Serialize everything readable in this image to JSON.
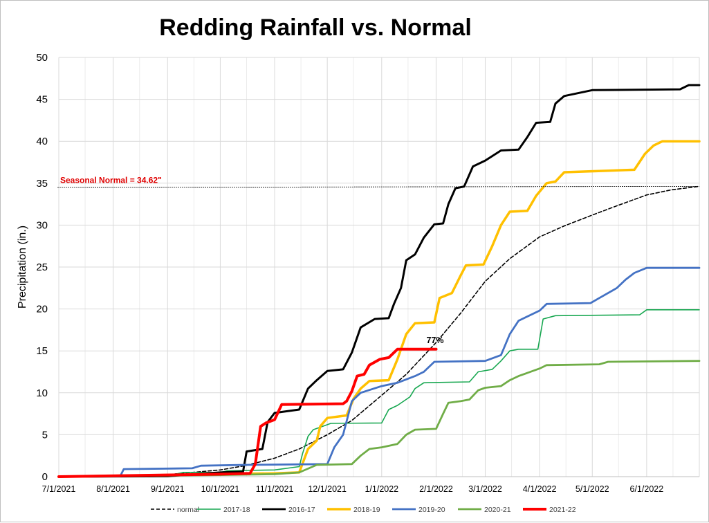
{
  "chart_data": {
    "type": "line",
    "title": "Redding Rainfall vs. Normal",
    "ylabel": "Precipitation (in.)",
    "xlabel": "",
    "ylim": [
      0,
      50
    ],
    "yticks": [
      0,
      5,
      10,
      15,
      20,
      25,
      30,
      35,
      40,
      45,
      50
    ],
    "x_tick_labels": [
      "7/1/2021",
      "8/1/2021",
      "9/1/2021",
      "10/1/2021",
      "11/1/2021",
      "12/1/2021",
      "1/1/2022",
      "2/1/2022",
      "3/1/2022",
      "4/1/2022",
      "5/1/2022",
      "6/1/2022"
    ],
    "xlim": [
      "7/1/2021",
      "7/1/2022"
    ],
    "grid": true,
    "legend_position": "bottom",
    "annotations": {
      "seasonal_normal_label": "Seasonal Normal = 34.62\"",
      "seasonal_normal_value": 34.62,
      "percent_label": "77%"
    },
    "series": [
      {
        "name": "normal",
        "color": "#000000",
        "style": "dashed",
        "points": [
          [
            "7/1/2021",
            0
          ],
          [
            "8/1/2021",
            0.05
          ],
          [
            "9/1/2021",
            0.25
          ],
          [
            "10/1/2021",
            0.8
          ],
          [
            "10/15/2021",
            1.3
          ],
          [
            "11/1/2021",
            2.2
          ],
          [
            "11/15/2021",
            3.3
          ],
          [
            "12/1/2021",
            5.0
          ],
          [
            "12/15/2021",
            6.7
          ],
          [
            "1/1/2022",
            9.7
          ],
          [
            "1/15/2022",
            12.2
          ],
          [
            "2/1/2022",
            16.0
          ],
          [
            "2/15/2022",
            19.5
          ],
          [
            "3/1/2022",
            23.3
          ],
          [
            "3/15/2022",
            26.0
          ],
          [
            "4/1/2022",
            28.6
          ],
          [
            "4/15/2022",
            29.9
          ],
          [
            "5/1/2022",
            31.2
          ],
          [
            "5/15/2022",
            32.3
          ],
          [
            "6/1/2022",
            33.6
          ],
          [
            "6/15/2022",
            34.2
          ],
          [
            "7/1/2022",
            34.62
          ]
        ]
      },
      {
        "name": "2017-18",
        "color": "#17a750",
        "style": "solid",
        "points": [
          [
            "7/1/2021",
            0
          ],
          [
            "9/1/2021",
            0.1
          ],
          [
            "9/10/2021",
            0.5
          ],
          [
            "10/1/2021",
            0.5
          ],
          [
            "10/5/2021",
            0.7
          ],
          [
            "11/1/2021",
            0.8
          ],
          [
            "11/15/2021",
            1.2
          ],
          [
            "11/17/2021",
            2.8
          ],
          [
            "11/20/2021",
            4.8
          ],
          [
            "11/23/2021",
            5.6
          ],
          [
            "12/1/2021",
            6.2
          ],
          [
            "12/3/2021",
            6.35
          ],
          [
            "1/1/2022",
            6.4
          ],
          [
            "1/5/2022",
            8.0
          ],
          [
            "1/10/2022",
            8.5
          ],
          [
            "1/17/2022",
            9.5
          ],
          [
            "1/20/2022",
            10.5
          ],
          [
            "1/25/2022",
            11.2
          ],
          [
            "2/20/2022",
            11.3
          ],
          [
            "2/25/2022",
            12.5
          ],
          [
            "3/5/2022",
            12.8
          ],
          [
            "3/10/2022",
            13.8
          ],
          [
            "3/15/2022",
            15.0
          ],
          [
            "3/20/2022",
            15.2
          ],
          [
            "3/31/2022",
            15.2
          ],
          [
            "4/3/2022",
            18.8
          ],
          [
            "4/10/2022",
            19.2
          ],
          [
            "5/28/2022",
            19.3
          ],
          [
            "6/1/2022",
            19.9
          ],
          [
            "7/1/2022",
            19.9
          ]
        ]
      },
      {
        "name": "2016-17",
        "color": "#000000",
        "style": "solid",
        "points": [
          [
            "7/1/2021",
            0
          ],
          [
            "9/1/2021",
            0.05
          ],
          [
            "10/1/2021",
            0.5
          ],
          [
            "10/14/2021",
            0.6
          ],
          [
            "10/16/2021",
            3.0
          ],
          [
            "10/25/2021",
            3.3
          ],
          [
            "10/28/2021",
            6.5
          ],
          [
            "11/1/2021",
            7.6
          ],
          [
            "11/15/2021",
            8.0
          ],
          [
            "11/20/2021",
            10.5
          ],
          [
            "11/25/2021",
            11.5
          ],
          [
            "12/1/2021",
            12.6
          ],
          [
            "12/10/2021",
            12.8
          ],
          [
            "12/15/2021",
            14.8
          ],
          [
            "12/20/2021",
            17.8
          ],
          [
            "12/28/2021",
            18.8
          ],
          [
            "1/5/2022",
            18.9
          ],
          [
            "1/8/2022",
            20.6
          ],
          [
            "1/12/2022",
            22.5
          ],
          [
            "1/15/2022",
            25.8
          ],
          [
            "1/20/2022",
            26.5
          ],
          [
            "1/25/2022",
            28.5
          ],
          [
            "1/31/2022",
            30.1
          ],
          [
            "2/5/2022",
            30.2
          ],
          [
            "2/8/2022",
            32.5
          ],
          [
            "2/12/2022",
            34.4
          ],
          [
            "2/17/2022",
            34.6
          ],
          [
            "2/22/2022",
            37.0
          ],
          [
            "3/1/2022",
            37.7
          ],
          [
            "3/10/2022",
            38.9
          ],
          [
            "3/20/2022",
            39.0
          ],
          [
            "3/25/2022",
            40.5
          ],
          [
            "3/30/2022",
            42.2
          ],
          [
            "4/7/2022",
            42.3
          ],
          [
            "4/10/2022",
            44.5
          ],
          [
            "4/15/2022",
            45.4
          ],
          [
            "5/1/2022",
            46.1
          ],
          [
            "6/20/2022",
            46.2
          ],
          [
            "6/25/2022",
            46.7
          ],
          [
            "7/1/2022",
            46.7
          ]
        ]
      },
      {
        "name": "2018-19",
        "color": "#ffc000",
        "style": "solid",
        "points": [
          [
            "7/1/2021",
            0
          ],
          [
            "10/1/2021",
            0.3
          ],
          [
            "11/1/2021",
            0.4
          ],
          [
            "11/15/2021",
            0.5
          ],
          [
            "11/20/2021",
            3.3
          ],
          [
            "11/25/2021",
            4.3
          ],
          [
            "11/27/2021",
            6.0
          ],
          [
            "12/1/2021",
            7.0
          ],
          [
            "12/12/2021",
            7.3
          ],
          [
            "12/16/2021",
            9.3
          ],
          [
            "12/20/2021",
            10.5
          ],
          [
            "12/25/2021",
            11.4
          ],
          [
            "1/5/2022",
            11.5
          ],
          [
            "1/10/2022",
            14.0
          ],
          [
            "1/15/2022",
            17.0
          ],
          [
            "1/20/2022",
            18.3
          ],
          [
            "1/31/2022",
            18.4
          ],
          [
            "2/3/2022",
            21.3
          ],
          [
            "2/10/2022",
            21.9
          ],
          [
            "2/15/2022",
            24.0
          ],
          [
            "2/18/2022",
            25.2
          ],
          [
            "2/28/2022",
            25.3
          ],
          [
            "3/5/2022",
            27.5
          ],
          [
            "3/10/2022",
            30.0
          ],
          [
            "3/15/2022",
            31.6
          ],
          [
            "3/25/2022",
            31.7
          ],
          [
            "3/30/2022",
            33.5
          ],
          [
            "4/5/2022",
            35.0
          ],
          [
            "4/10/2022",
            35.2
          ],
          [
            "4/15/2022",
            36.3
          ],
          [
            "5/25/2022",
            36.6
          ],
          [
            "5/31/2022",
            38.5
          ],
          [
            "6/5/2022",
            39.5
          ],
          [
            "6/10/2022",
            40.0
          ],
          [
            "7/1/2022",
            40.0
          ]
        ]
      },
      {
        "name": "2019-20",
        "color": "#4472c4",
        "style": "solid",
        "points": [
          [
            "7/1/2021",
            0
          ],
          [
            "8/5/2021",
            0.05
          ],
          [
            "8/7/2021",
            0.9
          ],
          [
            "9/15/2021",
            1.0
          ],
          [
            "9/20/2021",
            1.3
          ],
          [
            "10/15/2021",
            1.4
          ],
          [
            "12/1/2021",
            1.5
          ],
          [
            "12/5/2021",
            3.5
          ],
          [
            "12/10/2021",
            5.0
          ],
          [
            "12/15/2021",
            9.0
          ],
          [
            "12/20/2021",
            10.0
          ],
          [
            "1/1/2022",
            10.8
          ],
          [
            "1/10/2022",
            11.2
          ],
          [
            "1/20/2022",
            12.0
          ],
          [
            "1/25/2022",
            12.5
          ],
          [
            "1/31/2022",
            13.7
          ],
          [
            "3/1/2022",
            13.8
          ],
          [
            "3/10/2022",
            14.5
          ],
          [
            "3/15/2022",
            17.0
          ],
          [
            "3/20/2022",
            18.6
          ],
          [
            "4/1/2022",
            19.8
          ],
          [
            "4/5/2022",
            20.6
          ],
          [
            "4/30/2022",
            20.7
          ],
          [
            "5/5/2022",
            21.3
          ],
          [
            "5/15/2022",
            22.5
          ],
          [
            "5/20/2022",
            23.5
          ],
          [
            "5/25/2022",
            24.3
          ],
          [
            "6/1/2022",
            24.9
          ],
          [
            "7/1/2022",
            24.9
          ]
        ]
      },
      {
        "name": "2020-21",
        "color": "#70ad47",
        "style": "solid",
        "points": [
          [
            "7/1/2021",
            0
          ],
          [
            "10/1/2021",
            0.2
          ],
          [
            "11/1/2021",
            0.3
          ],
          [
            "11/15/2021",
            0.5
          ],
          [
            "11/25/2021",
            1.4
          ],
          [
            "12/15/2021",
            1.5
          ],
          [
            "12/20/2021",
            2.5
          ],
          [
            "12/25/2021",
            3.3
          ],
          [
            "1/1/2022",
            3.5
          ],
          [
            "1/10/2022",
            3.9
          ],
          [
            "1/15/2022",
            5.0
          ],
          [
            "1/20/2022",
            5.6
          ],
          [
            "2/1/2022",
            5.7
          ],
          [
            "2/5/2022",
            7.5
          ],
          [
            "2/8/2022",
            8.8
          ],
          [
            "2/15/2022",
            9.0
          ],
          [
            "2/20/2022",
            9.2
          ],
          [
            "2/25/2022",
            10.3
          ],
          [
            "3/1/2022",
            10.6
          ],
          [
            "3/10/2022",
            10.8
          ],
          [
            "3/15/2022",
            11.5
          ],
          [
            "3/20/2022",
            12.0
          ],
          [
            "4/1/2022",
            12.9
          ],
          [
            "4/5/2022",
            13.3
          ],
          [
            "5/5/2022",
            13.4
          ],
          [
            "5/10/2022",
            13.7
          ],
          [
            "7/1/2022",
            13.8
          ]
        ]
      },
      {
        "name": "2021-22",
        "color": "#ff0000",
        "style": "solid",
        "points": [
          [
            "7/1/2021",
            0
          ],
          [
            "10/1/2021",
            0.3
          ],
          [
            "10/18/2021",
            0.4
          ],
          [
            "10/21/2021",
            1.5
          ],
          [
            "10/24/2021",
            6.0
          ],
          [
            "10/27/2021",
            6.4
          ],
          [
            "11/1/2021",
            6.8
          ],
          [
            "11/5/2021",
            8.6
          ],
          [
            "12/10/2021",
            8.7
          ],
          [
            "12/12/2021",
            9.0
          ],
          [
            "12/15/2021",
            10.2
          ],
          [
            "12/18/2021",
            12.0
          ],
          [
            "12/22/2021",
            12.2
          ],
          [
            "12/25/2021",
            13.3
          ],
          [
            "12/31/2021",
            14.0
          ],
          [
            "1/5/2022",
            14.2
          ],
          [
            "1/10/2022",
            15.2
          ],
          [
            "2/1/2022",
            15.2
          ]
        ]
      }
    ]
  }
}
